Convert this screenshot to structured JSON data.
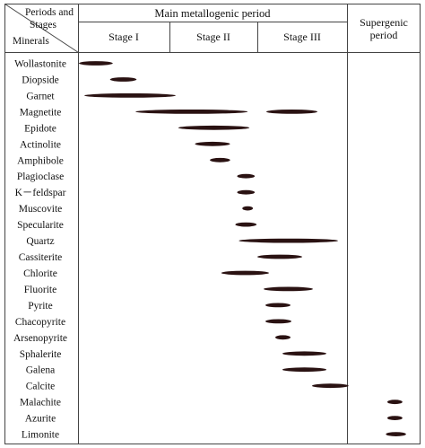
{
  "header": {
    "corner_top": "Periods and",
    "corner_mid": "Stages",
    "corner_bottom": "Minerals",
    "main_period": "Main metallogenic period",
    "stages": [
      "Stage  I",
      "Stage II",
      "Stage  III"
    ],
    "supergenic_line1": "Supergenic",
    "supergenic_line2": "period"
  },
  "chart_data": {
    "type": "paragenetic-sequence",
    "columns": [
      "Stage I",
      "Stage II",
      "Stage III",
      "Supergenic period"
    ],
    "bar_color": "#2a1212",
    "minerals": [
      {
        "name": "Wollastonite",
        "occurrences": [
          {
            "start": 0.0,
            "end": 0.37
          }
        ]
      },
      {
        "name": "Diopside",
        "occurrences": [
          {
            "start": 0.34,
            "end": 0.63
          }
        ]
      },
      {
        "name": "Garnet",
        "occurrences": [
          {
            "start": 0.06,
            "end": 1.06
          }
        ]
      },
      {
        "name": "Magnetite",
        "occurrences": [
          {
            "start": 0.62,
            "end": 1.88
          },
          {
            "start": 2.09,
            "end": 2.66
          }
        ]
      },
      {
        "name": "Epidote",
        "occurrences": [
          {
            "start": 1.09,
            "end": 1.9
          }
        ]
      },
      {
        "name": "Actinolite",
        "occurrences": [
          {
            "start": 1.28,
            "end": 1.68
          }
        ]
      },
      {
        "name": "Amphibole",
        "occurrences": [
          {
            "start": 1.45,
            "end": 1.68
          }
        ]
      },
      {
        "name": "Plagioclase",
        "occurrences": [
          {
            "start": 1.76,
            "end": 1.96
          }
        ]
      },
      {
        "name": "K－feldspar",
        "occurrences": [
          {
            "start": 1.76,
            "end": 1.96
          }
        ]
      },
      {
        "name": "Muscovite",
        "occurrences": [
          {
            "start": 1.82,
            "end": 1.94
          }
        ]
      },
      {
        "name": "Specularite",
        "occurrences": [
          {
            "start": 1.74,
            "end": 1.98
          }
        ]
      },
      {
        "name": "Quartz",
        "occurrences": [
          {
            "start": 1.78,
            "end": 2.89
          }
        ]
      },
      {
        "name": "Cassiterite",
        "occurrences": [
          {
            "start": 1.99,
            "end": 2.49
          }
        ]
      },
      {
        "name": "Chlorite",
        "occurrences": [
          {
            "start": 1.58,
            "end": 2.12
          }
        ]
      },
      {
        "name": "Fluorite",
        "occurrences": [
          {
            "start": 2.06,
            "end": 2.61
          }
        ]
      },
      {
        "name": "Pyrite",
        "occurrences": [
          {
            "start": 2.08,
            "end": 2.36
          }
        ]
      },
      {
        "name": "Chacopyrite",
        "occurrences": [
          {
            "start": 2.08,
            "end": 2.37
          }
        ]
      },
      {
        "name": "Arsenopyrite",
        "occurrences": [
          {
            "start": 2.19,
            "end": 2.36
          }
        ]
      },
      {
        "name": "Sphalerite",
        "occurrences": [
          {
            "start": 2.27,
            "end": 2.76
          }
        ]
      },
      {
        "name": "Galena",
        "occurrences": [
          {
            "start": 2.27,
            "end": 2.76
          }
        ]
      },
      {
        "name": "Calcite",
        "occurrences": [
          {
            "start": 2.6,
            "end": 3.01
          }
        ]
      },
      {
        "name": "Malachite",
        "occurrences": [
          {
            "start": 3.55,
            "end": 3.76
          }
        ]
      },
      {
        "name": "Azurite",
        "occurrences": [
          {
            "start": 3.55,
            "end": 3.76
          }
        ]
      },
      {
        "name": "Limonite",
        "occurrences": [
          {
            "start": 3.53,
            "end": 3.81
          }
        ]
      }
    ]
  }
}
